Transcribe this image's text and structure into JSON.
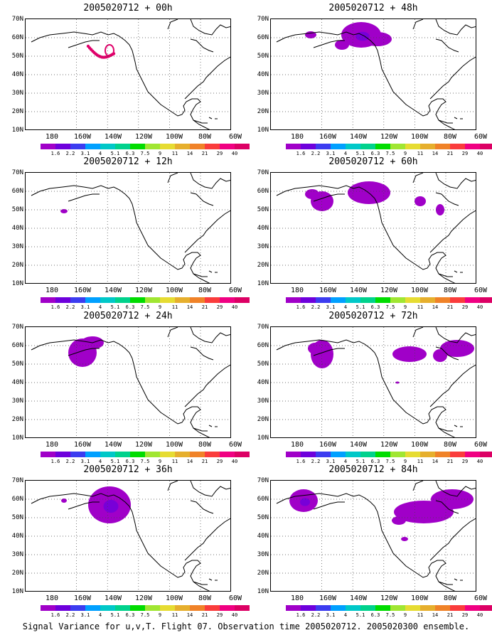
{
  "panels": [
    {
      "title": "2005020712 + 00h"
    },
    {
      "title": "2005020712 + 48h"
    },
    {
      "title": "2005020712 + 12h"
    },
    {
      "title": "2005020712 + 60h"
    },
    {
      "title": "2005020712 + 24h"
    },
    {
      "title": "2005020712 + 72h"
    },
    {
      "title": "2005020712 + 36h"
    },
    {
      "title": "2005020712 + 84h"
    }
  ],
  "lat_labels": [
    "70N",
    "60N",
    "50N",
    "40N",
    "30N",
    "20N",
    "10N"
  ],
  "lon_labels": [
    "180",
    "160W",
    "140W",
    "120W",
    "100W",
    "80W",
    "60W"
  ],
  "colorbar": {
    "labels": [
      "1.6",
      "2.2",
      "3.1",
      "4",
      "5.1",
      "6.3",
      "7.5",
      "9",
      "11",
      "14",
      "21",
      "29",
      "40"
    ],
    "colors": [
      "#a000c8",
      "#6e00dc",
      "#3c3cf0",
      "#00a0ff",
      "#00c8c8",
      "#00d28c",
      "#00dc00",
      "#a0e632",
      "#e6dc32",
      "#e6af2d",
      "#f08228",
      "#fa3c3c",
      "#f00082",
      "#dc0064"
    ]
  },
  "caption": "Signal Variance for u,v,T. Flight 07. Observation time 2005020712. 2005020300 ensemble."
}
